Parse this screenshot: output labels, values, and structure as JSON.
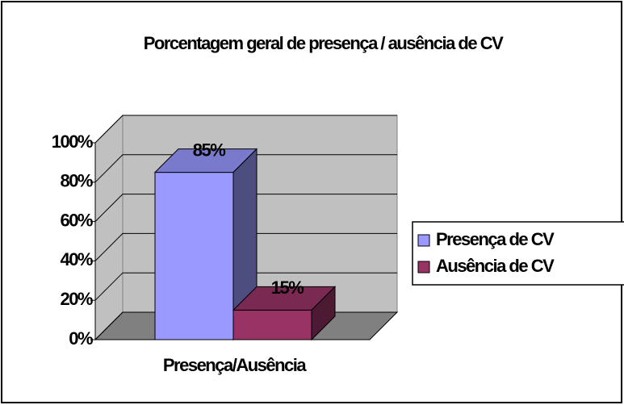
{
  "chart_data": {
    "type": "bar3d",
    "title": "Porcentagem geral de presença / ausência de CV",
    "categories": [
      "Presença/Ausência"
    ],
    "series": [
      {
        "name": "Presença de CV",
        "color": "#9999ff",
        "values": [
          85
        ],
        "value_labels": [
          "85%"
        ]
      },
      {
        "name": "Ausência de CV",
        "color": "#993366",
        "values": [
          15
        ],
        "value_labels": [
          "15%"
        ]
      }
    ],
    "ylim": [
      0,
      100
    ],
    "yticks": [
      {
        "value": 0,
        "label": "0%"
      },
      {
        "value": 20,
        "label": "20%"
      },
      {
        "value": 40,
        "label": "40%"
      },
      {
        "value": 60,
        "label": "60%"
      },
      {
        "value": 80,
        "label": "80%"
      },
      {
        "value": 100,
        "label": "100%"
      }
    ],
    "grid": true,
    "legend": "right"
  }
}
